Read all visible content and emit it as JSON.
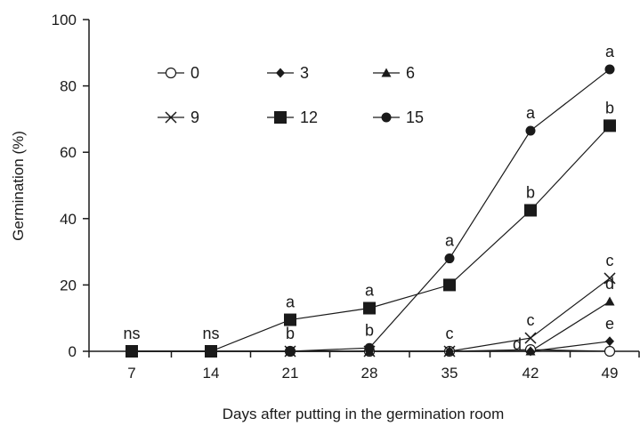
{
  "chart_data": {
    "type": "line",
    "title": "",
    "xlabel": "Days after putting in the germination room",
    "ylabel": "Germination (%)",
    "categories": [
      7,
      14,
      21,
      28,
      35,
      42,
      49
    ],
    "y_ticks": [
      0,
      20,
      40,
      60,
      80,
      100
    ],
    "ylim": [
      0,
      100
    ],
    "grid": false,
    "legend_position": "top-left",
    "series": [
      {
        "name": "0",
        "marker": "open-circle",
        "values": [
          0,
          0,
          0,
          0,
          0,
          0.5,
          0
        ]
      },
      {
        "name": "3",
        "marker": "diamond",
        "values": [
          0,
          0,
          0,
          0,
          0,
          0,
          3
        ]
      },
      {
        "name": "6",
        "marker": "triangle",
        "values": [
          0,
          0,
          0,
          0,
          0,
          0,
          15
        ]
      },
      {
        "name": "9",
        "marker": "cross",
        "values": [
          0,
          0,
          0,
          0,
          0,
          4,
          22
        ]
      },
      {
        "name": "12",
        "marker": "square",
        "values": [
          0,
          0,
          9.5,
          13,
          20,
          42.5,
          68
        ]
      },
      {
        "name": "15",
        "marker": "circle",
        "values": [
          0,
          0,
          0,
          1,
          28,
          66.5,
          85
        ]
      }
    ],
    "annotations": [
      {
        "text": "ns",
        "x": 7,
        "y": 0
      },
      {
        "text": "ns",
        "x": 14,
        "y": 0
      },
      {
        "text": "a",
        "x": 21,
        "y": 9.5
      },
      {
        "text": "b",
        "x": 21,
        "y": 0
      },
      {
        "text": "a",
        "x": 28,
        "y": 13
      },
      {
        "text": "b",
        "x": 28,
        "y": 1
      },
      {
        "text": "a",
        "x": 35,
        "y": 28
      },
      {
        "text": "c",
        "x": 35,
        "y": 0
      },
      {
        "text": "a",
        "x": 42,
        "y": 66.5
      },
      {
        "text": "b",
        "x": 42,
        "y": 42.5
      },
      {
        "text": "c",
        "x": 42,
        "y": 4
      },
      {
        "text": "d",
        "x": 42,
        "y": 0
      },
      {
        "text": "a",
        "x": 49,
        "y": 85
      },
      {
        "text": "b",
        "x": 49,
        "y": 68
      },
      {
        "text": "c",
        "x": 49,
        "y": 22
      },
      {
        "text": "d",
        "x": 49,
        "y": 15
      },
      {
        "text": "e",
        "x": 49,
        "y": 3
      }
    ],
    "colors": {
      "line": "#1a1a1a",
      "marker_fill": "#1a1a1a",
      "open_marker_fill": "#ffffff"
    }
  }
}
